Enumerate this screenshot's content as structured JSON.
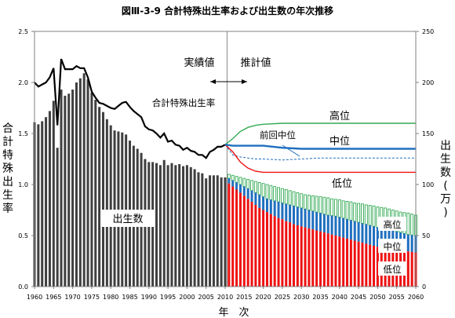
{
  "chart_data": {
    "type": "bar+line",
    "title": "図Ⅲ-3-9 合計特殊出生率および出生数の年次推移",
    "xlabel": "年　次",
    "y_left_label": "合計特殊出生率",
    "y_right_label": "出生数(万)",
    "ylim_left": [
      0,
      2.5
    ],
    "ylim_right": [
      0,
      250
    ],
    "y_left_ticks": [
      "0.0",
      "0.5",
      "1.0",
      "1.5",
      "2.0",
      "2.5"
    ],
    "y_right_ticks": [
      "0",
      "50",
      "100",
      "150",
      "200",
      "250"
    ],
    "x_ticks": [
      "1960",
      "1965",
      "1970",
      "1975",
      "1980",
      "1985",
      "1990",
      "1995",
      "2000",
      "2005",
      "2010",
      "2015",
      "2020",
      "2025",
      "2030",
      "2035",
      "2040",
      "2045",
      "2050",
      "2055",
      "2060"
    ],
    "divider_year": 2010.5,
    "labels": {
      "actual": "実績値",
      "projected": "推計値",
      "tfr": "合計特殊出生率",
      "births": "出生数",
      "prev_medium": "前回中位",
      "high": "高位",
      "medium": "中位",
      "low": "低位",
      "bar_high": "高位",
      "bar_medium": "中位",
      "bar_low": "低位"
    },
    "colors": {
      "actual_bar": "#3f3f3f",
      "tfr_line": "#000000",
      "high": "#33aa55",
      "medium": "#1f6fbf",
      "low": "#ee1111",
      "prev_medium": "#1f6fbf"
    },
    "births_actual": {
      "x": [
        1960,
        1961,
        1962,
        1963,
        1964,
        1965,
        1966,
        1967,
        1968,
        1969,
        1970,
        1971,
        1972,
        1973,
        1974,
        1975,
        1976,
        1977,
        1978,
        1979,
        1980,
        1981,
        1982,
        1983,
        1984,
        1985,
        1986,
        1987,
        1988,
        1989,
        1990,
        1991,
        1992,
        1993,
        1994,
        1995,
        1996,
        1997,
        1998,
        1999,
        2000,
        2001,
        2002,
        2003,
        2004,
        2005,
        2006,
        2007,
        2008,
        2009,
        2010
      ],
      "values": [
        161,
        159,
        162,
        166,
        172,
        182,
        136,
        193,
        187,
        189,
        193,
        200,
        204,
        209,
        203,
        190,
        183,
        176,
        171,
        164,
        158,
        153,
        152,
        151,
        149,
        143,
        138,
        135,
        131,
        125,
        122,
        122,
        121,
        119,
        124,
        119,
        121,
        119,
        120,
        118,
        119,
        117,
        115,
        112,
        111,
        106,
        109,
        109,
        109,
        107,
        107
      ]
    },
    "births_projected": {
      "x": [
        2011,
        2012,
        2013,
        2014,
        2015,
        2016,
        2017,
        2018,
        2019,
        2020,
        2021,
        2022,
        2023,
        2024,
        2025,
        2026,
        2027,
        2028,
        2029,
        2030,
        2031,
        2032,
        2033,
        2034,
        2035,
        2036,
        2037,
        2038,
        2039,
        2040,
        2041,
        2042,
        2043,
        2044,
        2045,
        2046,
        2047,
        2048,
        2049,
        2050,
        2051,
        2052,
        2053,
        2054,
        2055,
        2056,
        2057,
        2058,
        2059,
        2060
      ],
      "high": [
        110,
        109,
        108,
        107,
        106,
        105,
        104,
        103,
        102,
        101,
        100,
        99,
        98,
        97,
        96,
        95,
        94,
        93,
        92,
        91,
        90,
        89.5,
        89,
        88.5,
        88,
        87.5,
        87,
        86,
        85.5,
        85,
        84,
        83.5,
        83,
        82,
        81.5,
        81,
        80,
        79.5,
        79,
        78,
        77.5,
        77,
        76,
        75,
        74,
        73,
        72.5,
        72,
        71,
        70
      ],
      "medium": [
        106,
        104,
        102,
        100,
        98,
        96,
        94,
        92,
        90,
        88,
        86,
        85,
        84,
        83,
        82,
        81,
        80,
        79,
        78,
        77,
        76,
        75,
        74,
        73,
        72,
        71,
        70,
        69.5,
        69,
        68,
        67,
        66,
        65,
        64,
        63,
        62,
        61,
        60,
        59,
        58,
        57,
        56,
        55.5,
        55,
        54,
        53,
        52,
        51,
        50.5,
        50
      ],
      "low": [
        101,
        98,
        95,
        92,
        89,
        86,
        83,
        80,
        77,
        75,
        73,
        71,
        69,
        67,
        66,
        64,
        63,
        61,
        60,
        59,
        58,
        57,
        56,
        55,
        54,
        53,
        52,
        51,
        50,
        49,
        48,
        47,
        46,
        45,
        44,
        43,
        42,
        41,
        40,
        39,
        38,
        37.5,
        37,
        36.5,
        36,
        35.5,
        35,
        34.5,
        34,
        33.5
      ]
    },
    "tfr_actual": {
      "x": [
        1960,
        1961,
        1962,
        1963,
        1964,
        1965,
        1966,
        1967,
        1968,
        1969,
        1970,
        1971,
        1972,
        1973,
        1974,
        1975,
        1976,
        1977,
        1978,
        1979,
        1980,
        1981,
        1982,
        1983,
        1984,
        1985,
        1986,
        1987,
        1988,
        1989,
        1990,
        1991,
        1992,
        1993,
        1994,
        1995,
        1996,
        1997,
        1998,
        1999,
        2000,
        2001,
        2002,
        2003,
        2004,
        2005,
        2006,
        2007,
        2008,
        2009,
        2010
      ],
      "values": [
        2.0,
        1.96,
        1.98,
        2.0,
        2.05,
        2.14,
        1.58,
        2.23,
        2.13,
        2.13,
        2.13,
        2.16,
        2.14,
        2.14,
        2.05,
        1.91,
        1.85,
        1.8,
        1.79,
        1.77,
        1.75,
        1.74,
        1.77,
        1.8,
        1.81,
        1.76,
        1.72,
        1.69,
        1.66,
        1.57,
        1.54,
        1.53,
        1.5,
        1.46,
        1.5,
        1.42,
        1.43,
        1.39,
        1.38,
        1.34,
        1.36,
        1.33,
        1.32,
        1.29,
        1.29,
        1.26,
        1.32,
        1.34,
        1.37,
        1.37,
        1.39
      ]
    },
    "tfr_projected": {
      "x": [
        2010,
        2012,
        2014,
        2016,
        2018,
        2020,
        2025,
        2030,
        2035,
        2040,
        2045,
        2050,
        2055,
        2060
      ],
      "high": [
        1.39,
        1.45,
        1.52,
        1.56,
        1.58,
        1.59,
        1.6,
        1.6,
        1.6,
        1.6,
        1.6,
        1.6,
        1.6,
        1.6
      ],
      "medium": [
        1.39,
        1.38,
        1.38,
        1.38,
        1.38,
        1.38,
        1.36,
        1.35,
        1.35,
        1.35,
        1.35,
        1.35,
        1.35,
        1.35
      ],
      "low": [
        1.39,
        1.32,
        1.22,
        1.16,
        1.13,
        1.12,
        1.12,
        1.12,
        1.12,
        1.12,
        1.12,
        1.12,
        1.12,
        1.12
      ],
      "prev_medium": [
        1.39,
        1.29,
        1.27,
        1.26,
        1.25,
        1.25,
        1.24,
        1.25,
        1.26,
        1.26,
        1.26,
        1.26,
        1.26,
        1.26
      ]
    }
  }
}
